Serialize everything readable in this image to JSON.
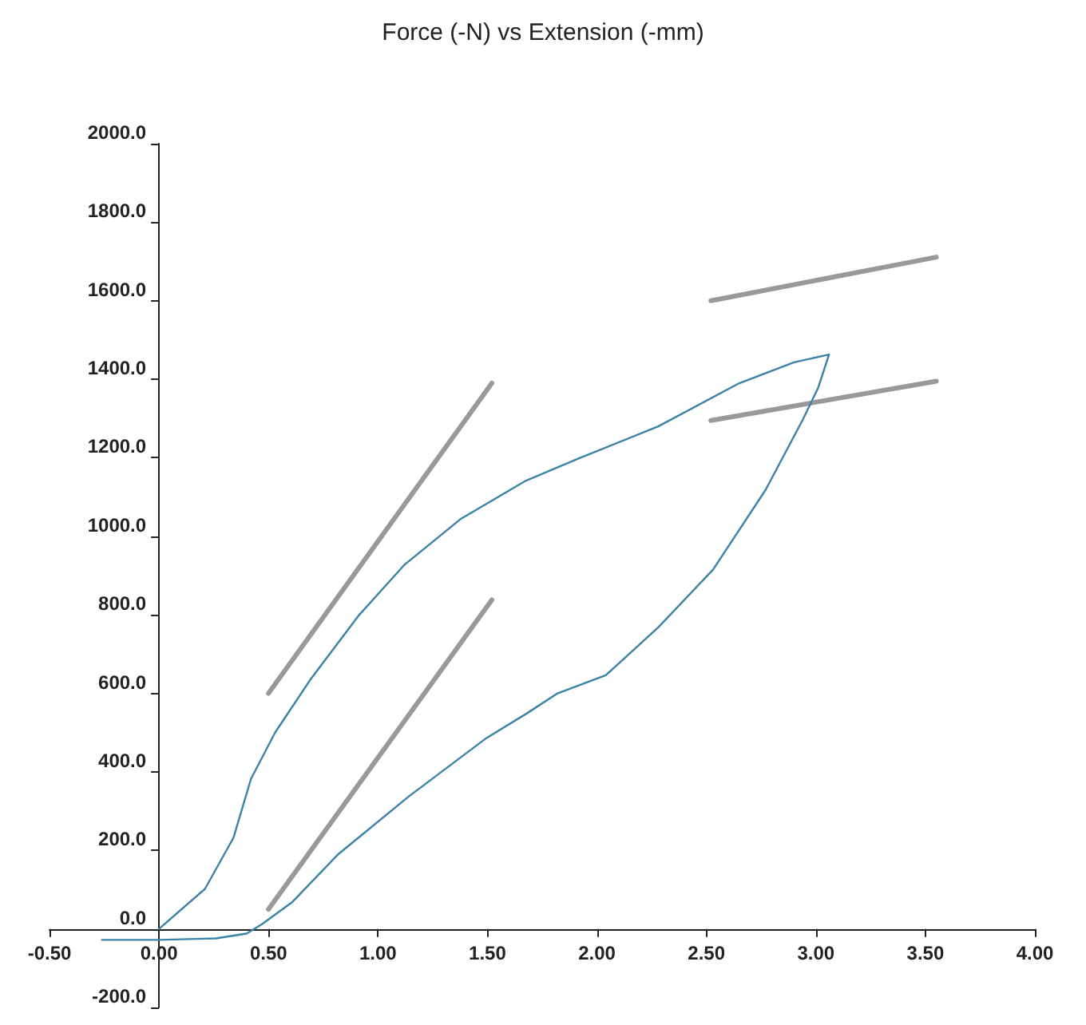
{
  "chart_data": {
    "type": "line",
    "title": "Force (-N) vs Extension (-mm)",
    "marker": "none",
    "xlim": [
      -0.5,
      4
    ],
    "ylim": [
      -200,
      2000
    ],
    "xticks": [
      {
        "value": -0.5,
        "label": "-0.50"
      },
      {
        "value": 0,
        "label": "0.00"
      },
      {
        "value": 0.5,
        "label": "0.50"
      },
      {
        "value": 1,
        "label": "1.00"
      },
      {
        "value": 1.5,
        "label": "1.50"
      },
      {
        "value": 2,
        "label": "2.00"
      },
      {
        "value": 2.5,
        "label": "2.50"
      },
      {
        "value": 3,
        "label": "3.00"
      },
      {
        "value": 3.5,
        "label": "3.50"
      },
      {
        "value": 4,
        "label": "4.00"
      }
    ],
    "yticks": [
      {
        "value": -200,
        "label": "-200.0"
      },
      {
        "value": 0,
        "label": "0.0"
      },
      {
        "value": 200,
        "label": "200.0"
      },
      {
        "value": 400,
        "label": "400.0"
      },
      {
        "value": 600,
        "label": "600.0"
      },
      {
        "value": 800,
        "label": "800.0"
      },
      {
        "value": 1000,
        "label": "1000.0"
      },
      {
        "value": 1200,
        "label": "1200.0"
      },
      {
        "value": 1400,
        "label": "1400.0"
      },
      {
        "value": 1600,
        "label": "1600.0"
      },
      {
        "value": 1800,
        "label": "1800.0"
      },
      {
        "value": 2000,
        "label": "2000.0"
      }
    ],
    "series": [
      {
        "color": "#3b82a8",
        "x": [
          0,
          0.21,
          0.34,
          0.42,
          0.53,
          0.69,
          0.91,
          1.12,
          1.38,
          1.67,
          1.92,
          2.28,
          2.65,
          2.9,
          3.06,
          3.01,
          2.94,
          2.77,
          2.53,
          2.28,
          2.04,
          1.82,
          1.68,
          1.49,
          1.14,
          0.82,
          0.61,
          0.47,
          0.4,
          0.26,
          0,
          -0.26
        ],
        "values": [
          0,
          102,
          232,
          382,
          500,
          634,
          797,
          927,
          1045,
          1140,
          1199,
          1280,
          1390,
          1443,
          1463,
          1378,
          1297,
          1118,
          915,
          768,
          646,
          600,
          549,
          484,
          337,
          191,
          69,
          12,
          -12,
          -24,
          -28,
          -28
        ]
      },
      {
        "color": "#999999",
        "x": [
          0.5,
          1.52
        ],
        "values": [
          600,
          1390
        ]
      },
      {
        "color": "#999999",
        "x": [
          0.5,
          1.52
        ],
        "values": [
          50,
          838
        ]
      },
      {
        "color": "#999999",
        "x": [
          2.52,
          3.55
        ],
        "values": [
          1600,
          1711
        ]
      },
      {
        "color": "#999999",
        "x": [
          2.52,
          3.55
        ],
        "values": [
          1295,
          1395
        ]
      }
    ]
  }
}
